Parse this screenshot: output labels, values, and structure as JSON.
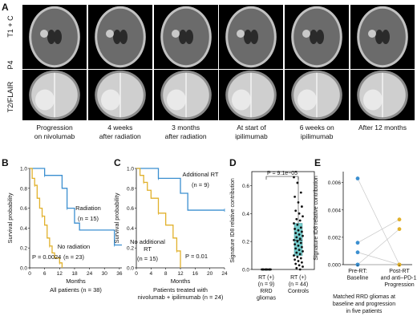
{
  "panelA": {
    "letter": "A",
    "row_labels": [
      "T1 + C",
      "P4",
      "T2/FLAIR"
    ],
    "columns": [
      {
        "caption": "Progression\non nivolumab"
      },
      {
        "caption": "4 weeks\nafter radiation"
      },
      {
        "caption": "3 months\nafter radiation"
      },
      {
        "caption": "At start of\nipilimumab"
      },
      {
        "caption": "6 weeks on\nipilimumab"
      },
      {
        "caption": "After 12 months"
      }
    ]
  },
  "panelB": {
    "letter": "B",
    "chart_data": {
      "type": "line",
      "ylabel": "Survival probability",
      "xlabel": "Months",
      "subtitle": "All patients (n = 38)",
      "xticks": [
        0,
        6,
        12,
        18,
        24,
        30,
        36
      ],
      "yticks": [
        "0.0",
        "0.2",
        "0.4",
        "0.6",
        "0.8",
        "1.0"
      ],
      "xlim": [
        0,
        37
      ],
      "ylim": [
        0,
        1
      ],
      "pvalue": "P = 0.0024",
      "series": [
        {
          "name": "Radiation",
          "n_label": "(n = 15)",
          "color": "#3b8fd0",
          "x": [
            0,
            4,
            6,
            6,
            13,
            15,
            18,
            20,
            34,
            37
          ],
          "y": [
            1.0,
            1.0,
            0.93,
            0.93,
            0.8,
            0.6,
            0.45,
            0.38,
            0.23,
            0.23
          ]
        },
        {
          "name": "No radiation",
          "n_label": "(n = 23)",
          "color": "#e1b12c",
          "x": [
            0,
            1,
            2,
            3,
            4,
            5,
            6,
            7,
            8,
            9,
            10,
            12,
            13
          ],
          "y": [
            1.0,
            0.9,
            0.83,
            0.7,
            0.6,
            0.52,
            0.43,
            0.3,
            0.22,
            0.15,
            0.1,
            0.05,
            0.0
          ]
        }
      ]
    }
  },
  "panelC": {
    "letter": "C",
    "chart_data": {
      "type": "line",
      "ylabel": "Survival probability",
      "xlabel": "Months",
      "subtitle": "Patients treated with\nnivolumab + ipilimumab (n = 24)",
      "xticks": [
        0,
        4,
        8,
        12,
        16,
        20,
        24
      ],
      "yticks": [
        "0.0",
        "0.2",
        "0.4",
        "0.6",
        "0.8",
        "1.0"
      ],
      "xlim": [
        0,
        24
      ],
      "ylim": [
        0,
        1
      ],
      "pvalue": "P = 0.01",
      "series": [
        {
          "name": "Additional RT",
          "n_label": "(n = 9)",
          "color": "#3b8fd0",
          "x": [
            0,
            5,
            6,
            12,
            14,
            24
          ],
          "y": [
            1.0,
            1.0,
            0.9,
            0.75,
            0.58,
            0.58
          ]
        },
        {
          "name": "No additional\nRT",
          "n_label": "(n = 15)",
          "color": "#e1b12c",
          "x": [
            0,
            1,
            2,
            3,
            4,
            6,
            8,
            10,
            11,
            12
          ],
          "y": [
            1.0,
            0.93,
            0.86,
            0.78,
            0.7,
            0.55,
            0.43,
            0.3,
            0.17,
            0.0
          ]
        }
      ]
    }
  },
  "panelD": {
    "letter": "D",
    "chart_data": {
      "type": "scatter",
      "ylabel": "Signature ID8 relative contribution",
      "yticks": [
        "0.0",
        "0.2",
        "0.4",
        "0.6"
      ],
      "ylim": [
        0,
        0.7
      ],
      "pvalue": "P = 9.1e−05",
      "groups": [
        {
          "label": "RT (+)\n(n = 9)\nRRD\ngliomas",
          "values": [
            0.0,
            0.0,
            0.0,
            0.0,
            0.0,
            0.0,
            0.0,
            0.0,
            0.0
          ]
        },
        {
          "label": "RT (+)\n(n = 44)\nControls",
          "values": [
            0.66,
            0.62,
            0.55,
            0.52,
            0.48,
            0.45,
            0.42,
            0.4,
            0.38,
            0.36,
            0.35,
            0.33,
            0.32,
            0.3,
            0.29,
            0.28,
            0.27,
            0.26,
            0.25,
            0.24,
            0.23,
            0.22,
            0.21,
            0.2,
            0.19,
            0.18,
            0.17,
            0.16,
            0.15,
            0.14,
            0.13,
            0.12,
            0.11,
            0.1,
            0.09,
            0.08,
            0.07,
            0.06,
            0.05,
            0.04,
            0.03,
            0.02,
            0.01,
            0.0
          ]
        }
      ]
    }
  },
  "panelE": {
    "letter": "E",
    "chart_data": {
      "type": "scatter",
      "ylabel": "Signature ID8 relative contribution",
      "yticks": [
        "0.000",
        "0.002",
        "0.004",
        "0.006"
      ],
      "ylim": [
        0,
        0.0068
      ],
      "categories": [
        "Pre-RT:\nBaseline",
        "Post-RT\nand anti–PD-1:\nProgression"
      ],
      "subtitle": "Matched RRD gliomas at\nbaseline and progression\nin five patients",
      "colors": [
        "#3b8fd0",
        "#e1b12c"
      ],
      "pairs": [
        [
          0.0063,
          0.0
        ],
        [
          0.0016,
          0.0033
        ],
        [
          0.0,
          0.0026
        ],
        [
          0.0009,
          0.0
        ],
        [
          0.0,
          0.0
        ]
      ]
    }
  }
}
